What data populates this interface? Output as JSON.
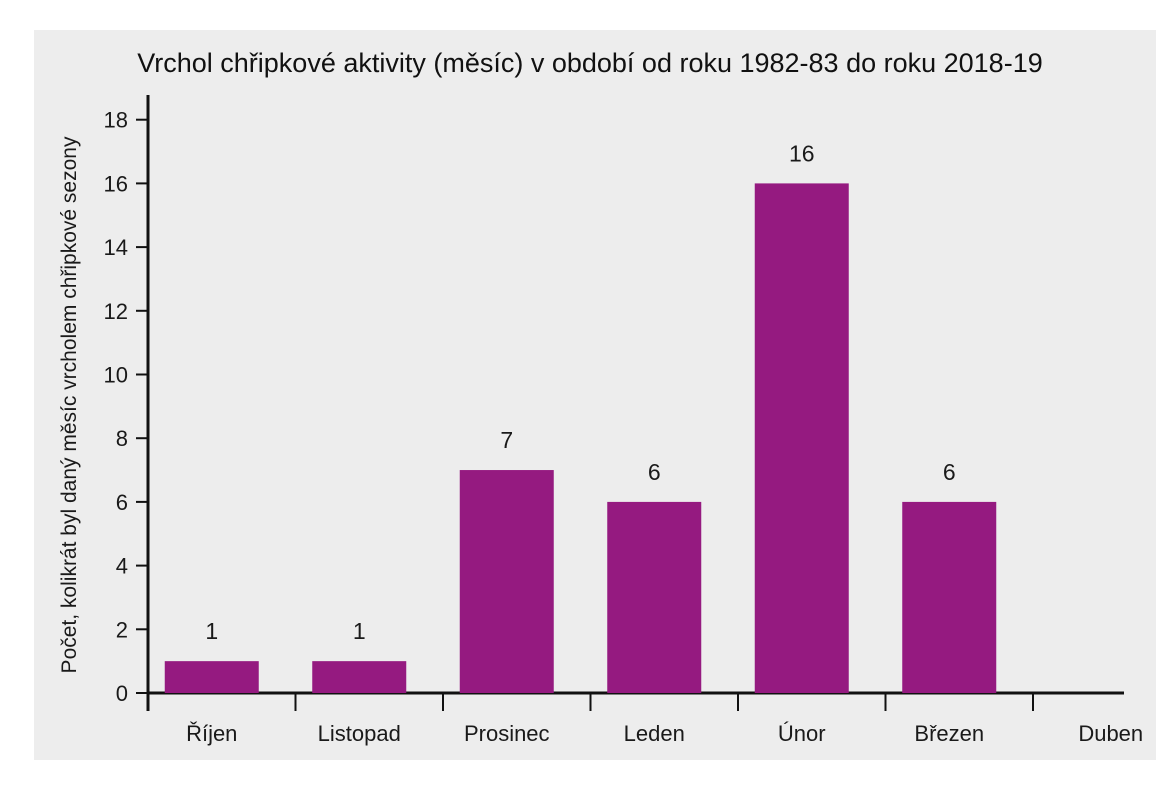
{
  "chart_data": {
    "type": "bar",
    "title": "Vrchol chřipkové aktivity (měsíc) v období od roku 1982-83 do roku 2018-19",
    "xlabel": "",
    "ylabel": "Počet, kolikrát byl daný měsíc vrcholem chřipkové sezony",
    "categories": [
      "Říjen",
      "Listopad",
      "Prosinec",
      "Leden",
      "Únor",
      "Březen",
      "Duben"
    ],
    "values": [
      1,
      1,
      7,
      6,
      16,
      6,
      0
    ],
    "data_labels": [
      "1",
      "1",
      "7",
      "6",
      "16",
      "6",
      ""
    ],
    "ylim": [
      0,
      18
    ],
    "yticks": [
      0,
      2,
      4,
      6,
      8,
      10,
      12,
      14,
      16,
      18
    ],
    "bar_color": "#951a80",
    "background_color": "#ededed",
    "grid": false,
    "legend": "none"
  }
}
